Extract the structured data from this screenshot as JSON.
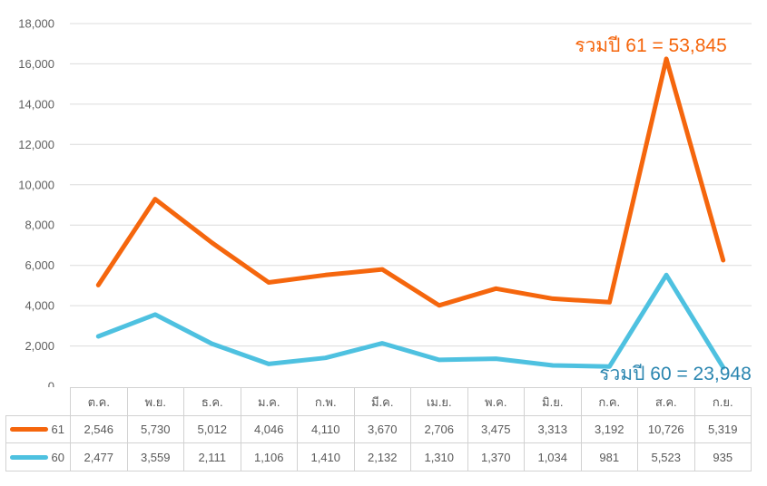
{
  "chart_data": {
    "type": "line",
    "stacked": true,
    "grid": true,
    "categories": [
      "ต.ค.",
      "พ.ย.",
      "ธ.ค.",
      "ม.ค.",
      "ก.พ.",
      "มี.ค.",
      "เม.ย.",
      "พ.ค.",
      "มิ.ย.",
      "ก.ค.",
      "ส.ค.",
      "ก.ย."
    ],
    "series": [
      {
        "name": "61",
        "color": "#f5660d",
        "values": [
          2546,
          5730,
          5012,
          4046,
          4110,
          3670,
          2706,
          3475,
          3313,
          3192,
          10726,
          5319
        ]
      },
      {
        "name": "60",
        "color": "#4ec1e0",
        "values": [
          2477,
          3559,
          2111,
          1106,
          1410,
          2132,
          1310,
          1370,
          1034,
          981,
          5523,
          935
        ]
      }
    ],
    "title": "",
    "xlabel": "",
    "ylabel": "",
    "ylim": [
      0,
      18000
    ],
    "ytick_step": 2000,
    "yticks": [
      0,
      2000,
      4000,
      6000,
      8000,
      10000,
      12000,
      14000,
      16000,
      18000
    ],
    "legend_position": "data-table-left",
    "annotations": [
      {
        "text": "รวมปี 61 = 53,845",
        "color": "#f5660d",
        "anchor_series": "61"
      },
      {
        "text": "รวมปี 60 = 23,948",
        "color": "#2b86b0",
        "anchor_series": "60"
      }
    ]
  },
  "colors": {
    "series_61": "#f5660d",
    "series_60": "#4ec1e0",
    "annotation_60_text": "#2b86b0",
    "gridline": "#dcdcdc",
    "axis_text": "#5f5f5f",
    "table_border": "#d2d2d2",
    "table_text": "#595959",
    "background": "#ffffff"
  }
}
